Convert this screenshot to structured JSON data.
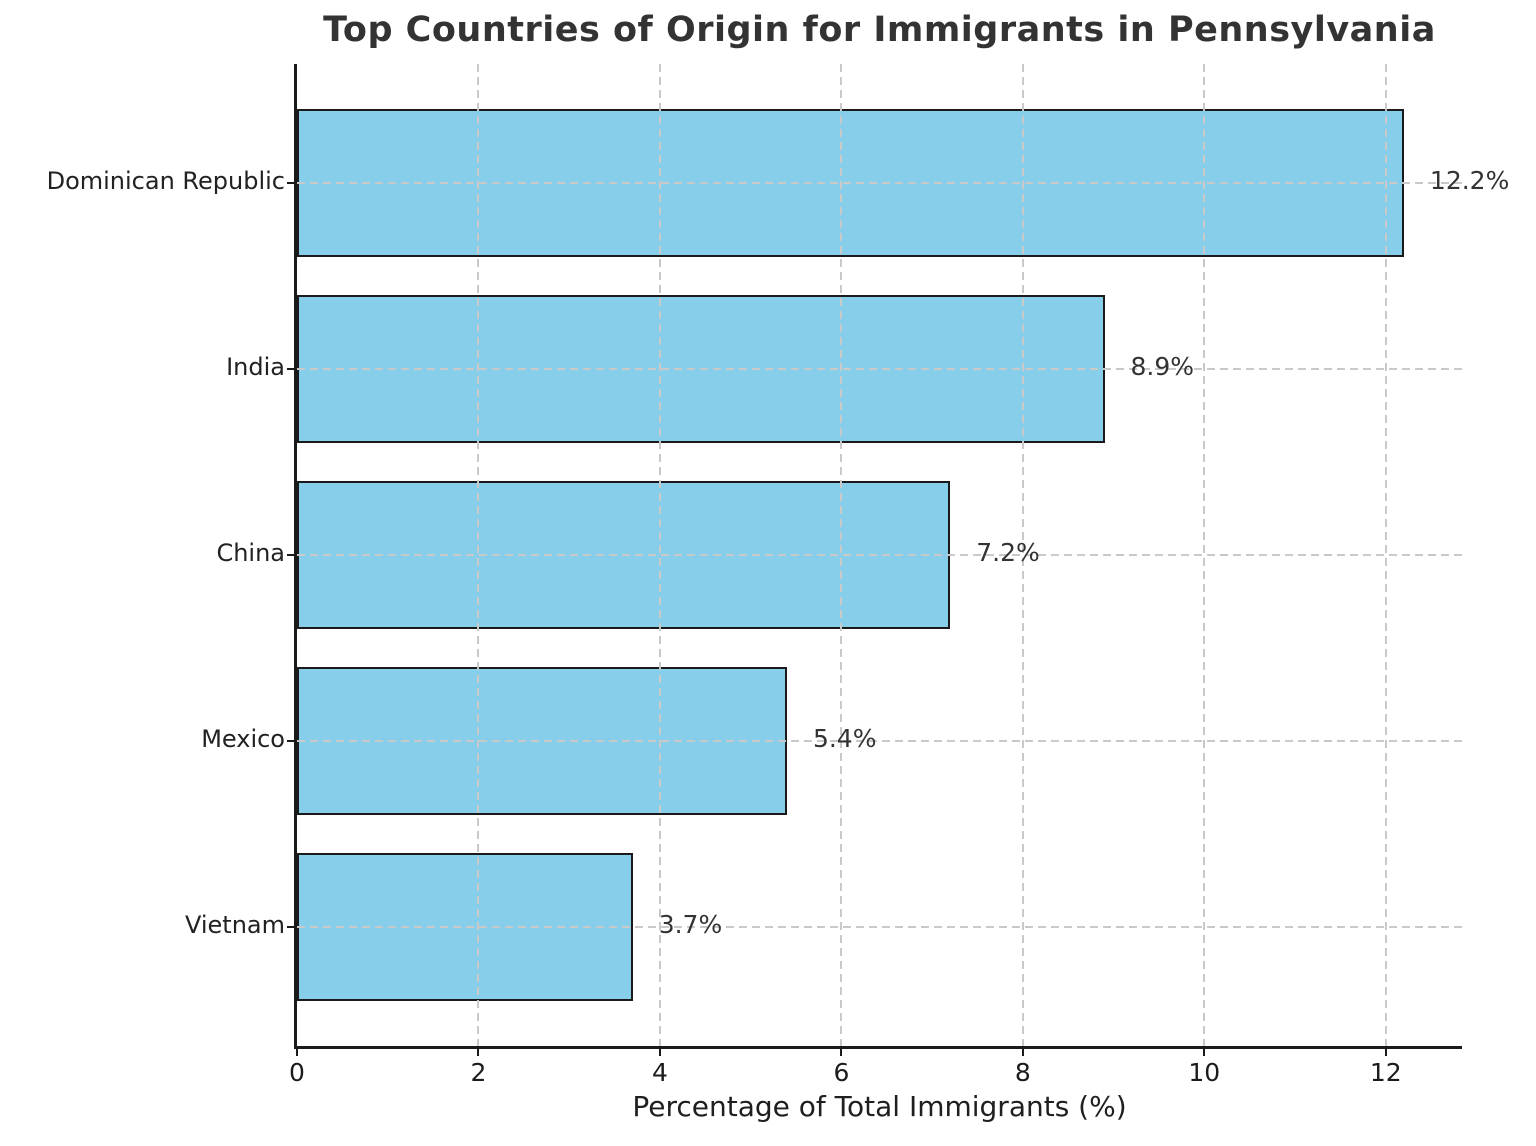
{
  "chart_data": {
    "type": "bar",
    "orientation": "horizontal",
    "title": "Top Countries of Origin for Immigrants in Pennsylvania",
    "xlabel": "Percentage of Total Immigrants (%)",
    "ylabel": "",
    "categories": [
      "Dominican Republic",
      "India",
      "China",
      "Mexico",
      "Vietnam"
    ],
    "values": [
      12.2,
      8.9,
      7.2,
      5.4,
      3.7
    ],
    "value_labels": [
      "12.2%",
      "8.9%",
      "7.2%",
      "5.4%",
      "3.7%"
    ],
    "xticks": [
      0,
      2,
      4,
      6,
      8,
      10,
      12
    ],
    "xtick_labels": [
      "0",
      "2",
      "4",
      "6",
      "8",
      "10",
      "12"
    ],
    "xlim": [
      0,
      12.84
    ],
    "grid": true,
    "grid_style": "dashed",
    "legend": "none",
    "bar_color": "#87CEEB",
    "bar_edge_color": "#1a1a1a",
    "grid_color": "#c9c9c9",
    "text_color": "#333333"
  }
}
